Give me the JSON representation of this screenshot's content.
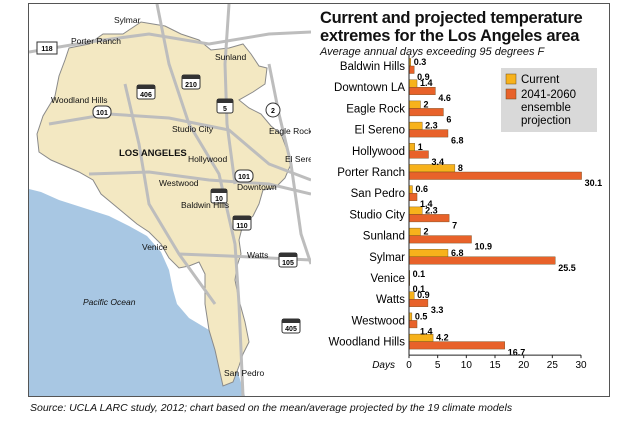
{
  "chart_data": {
    "type": "bar",
    "orientation": "horizontal",
    "title": "Current and projected temperature extremes for the Los Angeles area",
    "title_lines": [
      "Current and projected temperature",
      "extremes for the Los Angeles area"
    ],
    "subtitle": "Average annual days exceeding 95 degrees F",
    "xlabel": "Days",
    "xlim": [
      0,
      30
    ],
    "xticks": [
      0,
      5,
      10,
      15,
      20,
      25,
      30
    ],
    "categories": [
      "Baldwin Hills",
      "Downtown LA",
      "Eagle Rock",
      "El Sereno",
      "Hollywood",
      "Porter Ranch",
      "San Pedro",
      "Studio City",
      "Sunland",
      "Sylmar",
      "Venice",
      "Watts",
      "Westwood",
      "Woodland Hills"
    ],
    "series": [
      {
        "name": "Current",
        "color": "#f7b21b",
        "values": [
          0.3,
          1.4,
          2,
          2.3,
          1,
          8,
          0.6,
          2.3,
          2,
          6.8,
          0.1,
          0.9,
          0.5,
          4.2
        ]
      },
      {
        "name": "2041-2060 ensemble projection",
        "legend_lines": [
          "2041-2060",
          "ensemble",
          "projection"
        ],
        "color": "#e8622a",
        "values": [
          0.9,
          4.6,
          6,
          6.8,
          3.4,
          30.1,
          1.4,
          7,
          10.9,
          25.5,
          0.1,
          3.3,
          1.4,
          16.7
        ]
      }
    ],
    "value_labels": [
      [
        "0.3",
        "1.4",
        "2",
        "2.3",
        "1",
        "8",
        "0.6",
        "2.3",
        "2",
        "6.8",
        "0.1",
        "0.9",
        "0.5",
        "4.2"
      ],
      [
        "0.9",
        "4.6",
        "6",
        "6.8",
        "3.4",
        "30.1",
        "1.4",
        "7",
        "10.9",
        "25.5",
        "0.1",
        "3.3",
        "1.4",
        "16.7"
      ]
    ],
    "legend_position": "top-right",
    "grid": false
  },
  "map": {
    "labels": [
      "Sylmar",
      "Porter Ranch",
      "Sunland",
      "Woodland Hills",
      "Studio City",
      "Eagle Rock",
      "LOS ANGELES",
      "Hollywood",
      "El Sereno",
      "Westwood",
      "Downtown",
      "Baldwin Hills",
      "Venice",
      "Watts",
      "Pacific Ocean",
      "San Pedro"
    ],
    "highways": [
      "118",
      "210",
      "406",
      "5",
      "2",
      "101",
      "101",
      "10",
      "110",
      "105",
      "405"
    ],
    "colors": {
      "city": "#f3e8c2",
      "water": "#a8c7e3",
      "land": "#ffffff",
      "roads": "#bdbdbd",
      "outline": "#8a8a8a"
    }
  },
  "source": "Source: UCLA LARC study, 2012; chart based on the mean/average projected by the 19 climate models"
}
